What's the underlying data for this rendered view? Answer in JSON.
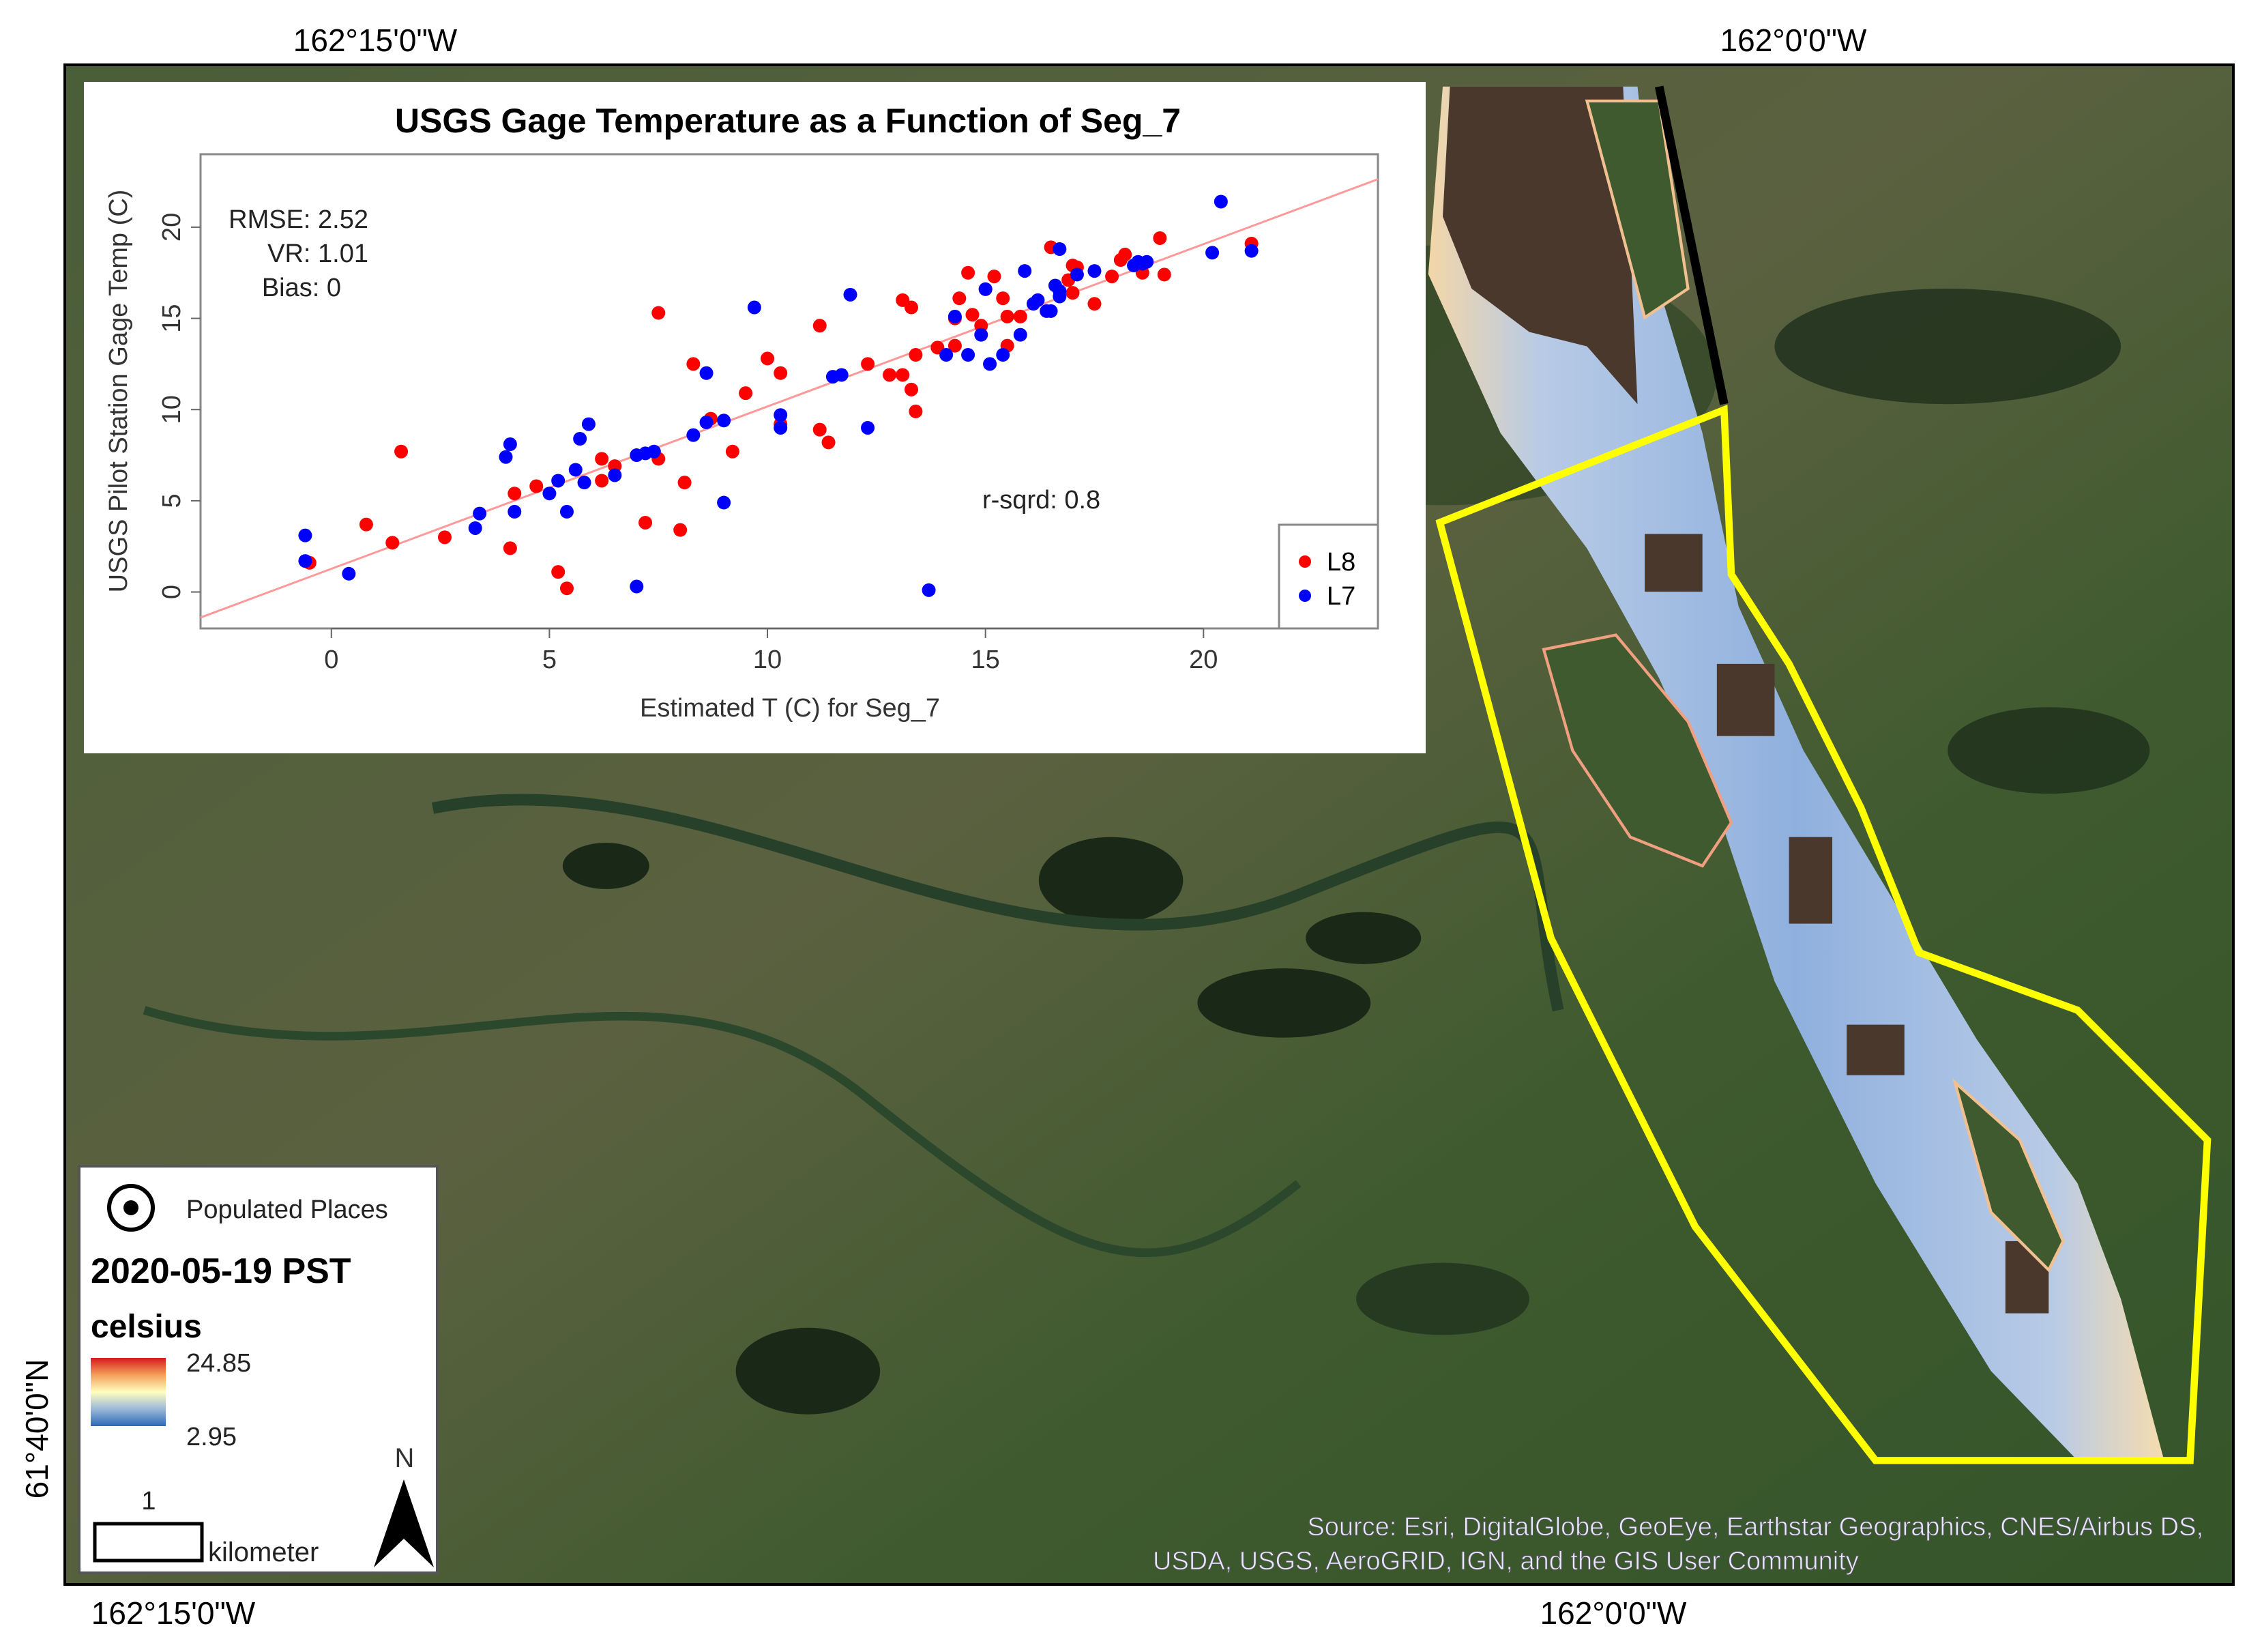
{
  "map": {
    "graticule": {
      "top_left": "162°15'0\"W",
      "top_right": "162°0'0\"W",
      "bottom_left": "162°15'0\"W",
      "bottom_right": "162°0'0\"W",
      "left": "61°40'0\"N"
    },
    "attribution_line1": "Source: Esri, DigitalGlobe, GeoEye, Earthstar Geographics, CNES/Airbus DS,",
    "attribution_line2": "USDA, USGS, AeroGRID, IGN, and the GIS User Community",
    "colors": {
      "study_area_outline": "#ffff00",
      "water_cool": "#4a78c0",
      "water_warm": "#e03020",
      "land": "#3d5a2c"
    }
  },
  "legend": {
    "populated_places": "Populated Places",
    "date": "2020-05-19 PST",
    "unit": "celsius",
    "max": "24.85",
    "min": "2.95",
    "ramp_colors": [
      "#d7191c",
      "#f4a05a",
      "#ffffbf",
      "#9bb8d8",
      "#2c68b8"
    ],
    "scale_value": "1",
    "scale_unit": "kilometer",
    "north": "N"
  },
  "chart_data": {
    "type": "scatter",
    "title": "USGS Gage Temperature as a Function of Seg_7",
    "xlabel": "Estimated T (C) for Seg_7",
    "ylabel": "USGS Pilot Station Gage Temp (C)",
    "xlim": [
      -3,
      24
    ],
    "ylim": [
      -2,
      24
    ],
    "xticks": [
      0,
      5,
      10,
      15,
      20
    ],
    "yticks": [
      0,
      5,
      10,
      15,
      20
    ],
    "grid": false,
    "legend_placement": "bottom-right",
    "annotations": {
      "rmse": "RMSE: 2.52",
      "vr": "VR: 1.01",
      "bias": "Bias: 0",
      "rsq": "r-sqrd: 0.8"
    },
    "fit_line": {
      "color": "#ff9999",
      "slope": 0.89,
      "intercept": 1.27
    },
    "series": [
      {
        "name": "L8",
        "color": "#ff0000",
        "points": [
          [
            -0.5,
            1.6
          ],
          [
            0.8,
            3.7
          ],
          [
            1.4,
            2.7
          ],
          [
            1.6,
            7.7
          ],
          [
            2.6,
            3.0
          ],
          [
            4.1,
            2.4
          ],
          [
            4.2,
            5.4
          ],
          [
            4.7,
            5.8
          ],
          [
            5.2,
            1.1
          ],
          [
            5.4,
            0.2
          ],
          [
            6.2,
            6.1
          ],
          [
            6.2,
            7.3
          ],
          [
            6.5,
            6.9
          ],
          [
            7.2,
            3.8
          ],
          [
            7.5,
            7.3
          ],
          [
            7.5,
            15.3
          ],
          [
            8.0,
            3.4
          ],
          [
            8.1,
            6.0
          ],
          [
            8.3,
            12.5
          ],
          [
            8.7,
            9.5
          ],
          [
            9.2,
            7.7
          ],
          [
            9.5,
            10.9
          ],
          [
            10.0,
            12.8
          ],
          [
            10.3,
            12.0
          ],
          [
            10.3,
            9.2
          ],
          [
            11.2,
            8.9
          ],
          [
            11.2,
            14.6
          ],
          [
            11.4,
            8.2
          ],
          [
            12.3,
            12.5
          ],
          [
            12.8,
            11.9
          ],
          [
            13.1,
            11.9
          ],
          [
            13.1,
            16.0
          ],
          [
            13.3,
            15.6
          ],
          [
            13.3,
            11.1
          ],
          [
            13.4,
            9.9
          ],
          [
            13.4,
            13.0
          ],
          [
            13.9,
            13.4
          ],
          [
            14.3,
            13.5
          ],
          [
            14.3,
            15.0
          ],
          [
            14.4,
            16.1
          ],
          [
            14.6,
            17.5
          ],
          [
            14.7,
            15.2
          ],
          [
            14.9,
            14.6
          ],
          [
            15.0,
            16.6
          ],
          [
            15.2,
            17.3
          ],
          [
            15.4,
            16.1
          ],
          [
            15.5,
            15.1
          ],
          [
            15.5,
            13.5
          ],
          [
            15.8,
            15.1
          ],
          [
            16.5,
            18.9
          ],
          [
            16.9,
            17.1
          ],
          [
            17.0,
            17.9
          ],
          [
            17.0,
            16.4
          ],
          [
            17.1,
            17.8
          ],
          [
            17.5,
            15.8
          ],
          [
            17.9,
            17.3
          ],
          [
            18.1,
            18.2
          ],
          [
            18.2,
            18.5
          ],
          [
            18.6,
            17.5
          ],
          [
            19.0,
            19.4
          ],
          [
            19.1,
            17.4
          ],
          [
            21.1,
            19.1
          ]
        ]
      },
      {
        "name": "L7",
        "color": "#0000ff",
        "points": [
          [
            -0.6,
            3.1
          ],
          [
            -0.6,
            1.7
          ],
          [
            0.4,
            1.0
          ],
          [
            3.3,
            3.5
          ],
          [
            3.4,
            4.3
          ],
          [
            4.0,
            7.4
          ],
          [
            4.1,
            8.1
          ],
          [
            4.2,
            4.4
          ],
          [
            5.0,
            5.4
          ],
          [
            5.2,
            6.1
          ],
          [
            5.4,
            4.4
          ],
          [
            5.6,
            6.7
          ],
          [
            5.7,
            8.4
          ],
          [
            5.8,
            6.0
          ],
          [
            5.9,
            9.2
          ],
          [
            6.5,
            6.4
          ],
          [
            7.0,
            7.5
          ],
          [
            7.0,
            0.3
          ],
          [
            7.2,
            7.6
          ],
          [
            7.4,
            7.7
          ],
          [
            8.3,
            8.6
          ],
          [
            8.6,
            12.0
          ],
          [
            8.6,
            9.3
          ],
          [
            9.0,
            9.4
          ],
          [
            9.0,
            4.9
          ],
          [
            9.7,
            15.6
          ],
          [
            10.3,
            9.7
          ],
          [
            10.3,
            9.0
          ],
          [
            11.5,
            11.8
          ],
          [
            11.7,
            11.9
          ],
          [
            11.9,
            16.3
          ],
          [
            12.3,
            9.0
          ],
          [
            13.7,
            0.1
          ],
          [
            14.1,
            13.0
          ],
          [
            14.3,
            15.1
          ],
          [
            14.6,
            13.0
          ],
          [
            14.9,
            14.1
          ],
          [
            15.0,
            16.6
          ],
          [
            15.1,
            12.5
          ],
          [
            15.4,
            13.0
          ],
          [
            15.8,
            14.1
          ],
          [
            15.9,
            17.6
          ],
          [
            16.1,
            15.8
          ],
          [
            16.2,
            16.0
          ],
          [
            16.4,
            15.4
          ],
          [
            16.5,
            15.4
          ],
          [
            16.6,
            16.8
          ],
          [
            16.7,
            16.2
          ],
          [
            16.7,
            18.8
          ],
          [
            16.7,
            16.5
          ],
          [
            17.1,
            17.4
          ],
          [
            17.5,
            17.6
          ],
          [
            18.4,
            17.9
          ],
          [
            18.5,
            18.1
          ],
          [
            18.6,
            18.0
          ],
          [
            18.7,
            18.1
          ],
          [
            20.2,
            18.6
          ],
          [
            20.4,
            21.4
          ],
          [
            21.1,
            18.7
          ]
        ]
      }
    ]
  }
}
